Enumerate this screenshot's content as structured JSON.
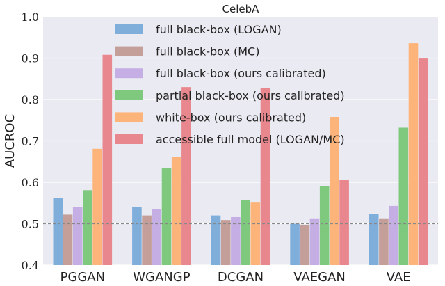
{
  "chart_data": {
    "type": "bar",
    "title": "CelebA",
    "xlabel": "",
    "ylabel": "AUCROC",
    "ylim": [
      0.4,
      1.0
    ],
    "yticks": [
      "0.4",
      "0.5",
      "0.6",
      "0.7",
      "0.8",
      "0.9",
      "1.0"
    ],
    "grid": true,
    "legend_position": "top",
    "reference_line": 0.5,
    "categories": [
      "PGGAN",
      "WGANGP",
      "DCGAN",
      "VAEGAN",
      "VAE"
    ],
    "series": [
      {
        "name": "full black-box (LOGAN)",
        "color": "#80aedb",
        "values": [
          0.562,
          0.541,
          0.52,
          0.5,
          0.524
        ]
      },
      {
        "name": "full black-box (MC)",
        "color": "#c49f9a",
        "values": [
          0.522,
          0.52,
          0.509,
          0.497,
          0.513
        ]
      },
      {
        "name": "full black-box (ours calibrated)",
        "color": "#c4aee3",
        "values": [
          0.54,
          0.536,
          0.516,
          0.513,
          0.543
        ]
      },
      {
        "name": "partial black-box (ours calibrated)",
        "color": "#7ec97e",
        "values": [
          0.581,
          0.634,
          0.557,
          0.59,
          0.732
        ]
      },
      {
        "name": "white-box (ours calibrated)",
        "color": "#fdb47a",
        "values": [
          0.681,
          0.662,
          0.551,
          0.758,
          0.936
        ]
      },
      {
        "name": "accessible full model (LOGAN/MC)",
        "color": "#e8878d",
        "values": [
          0.908,
          0.83,
          0.827,
          0.605,
          0.899
        ]
      }
    ]
  }
}
